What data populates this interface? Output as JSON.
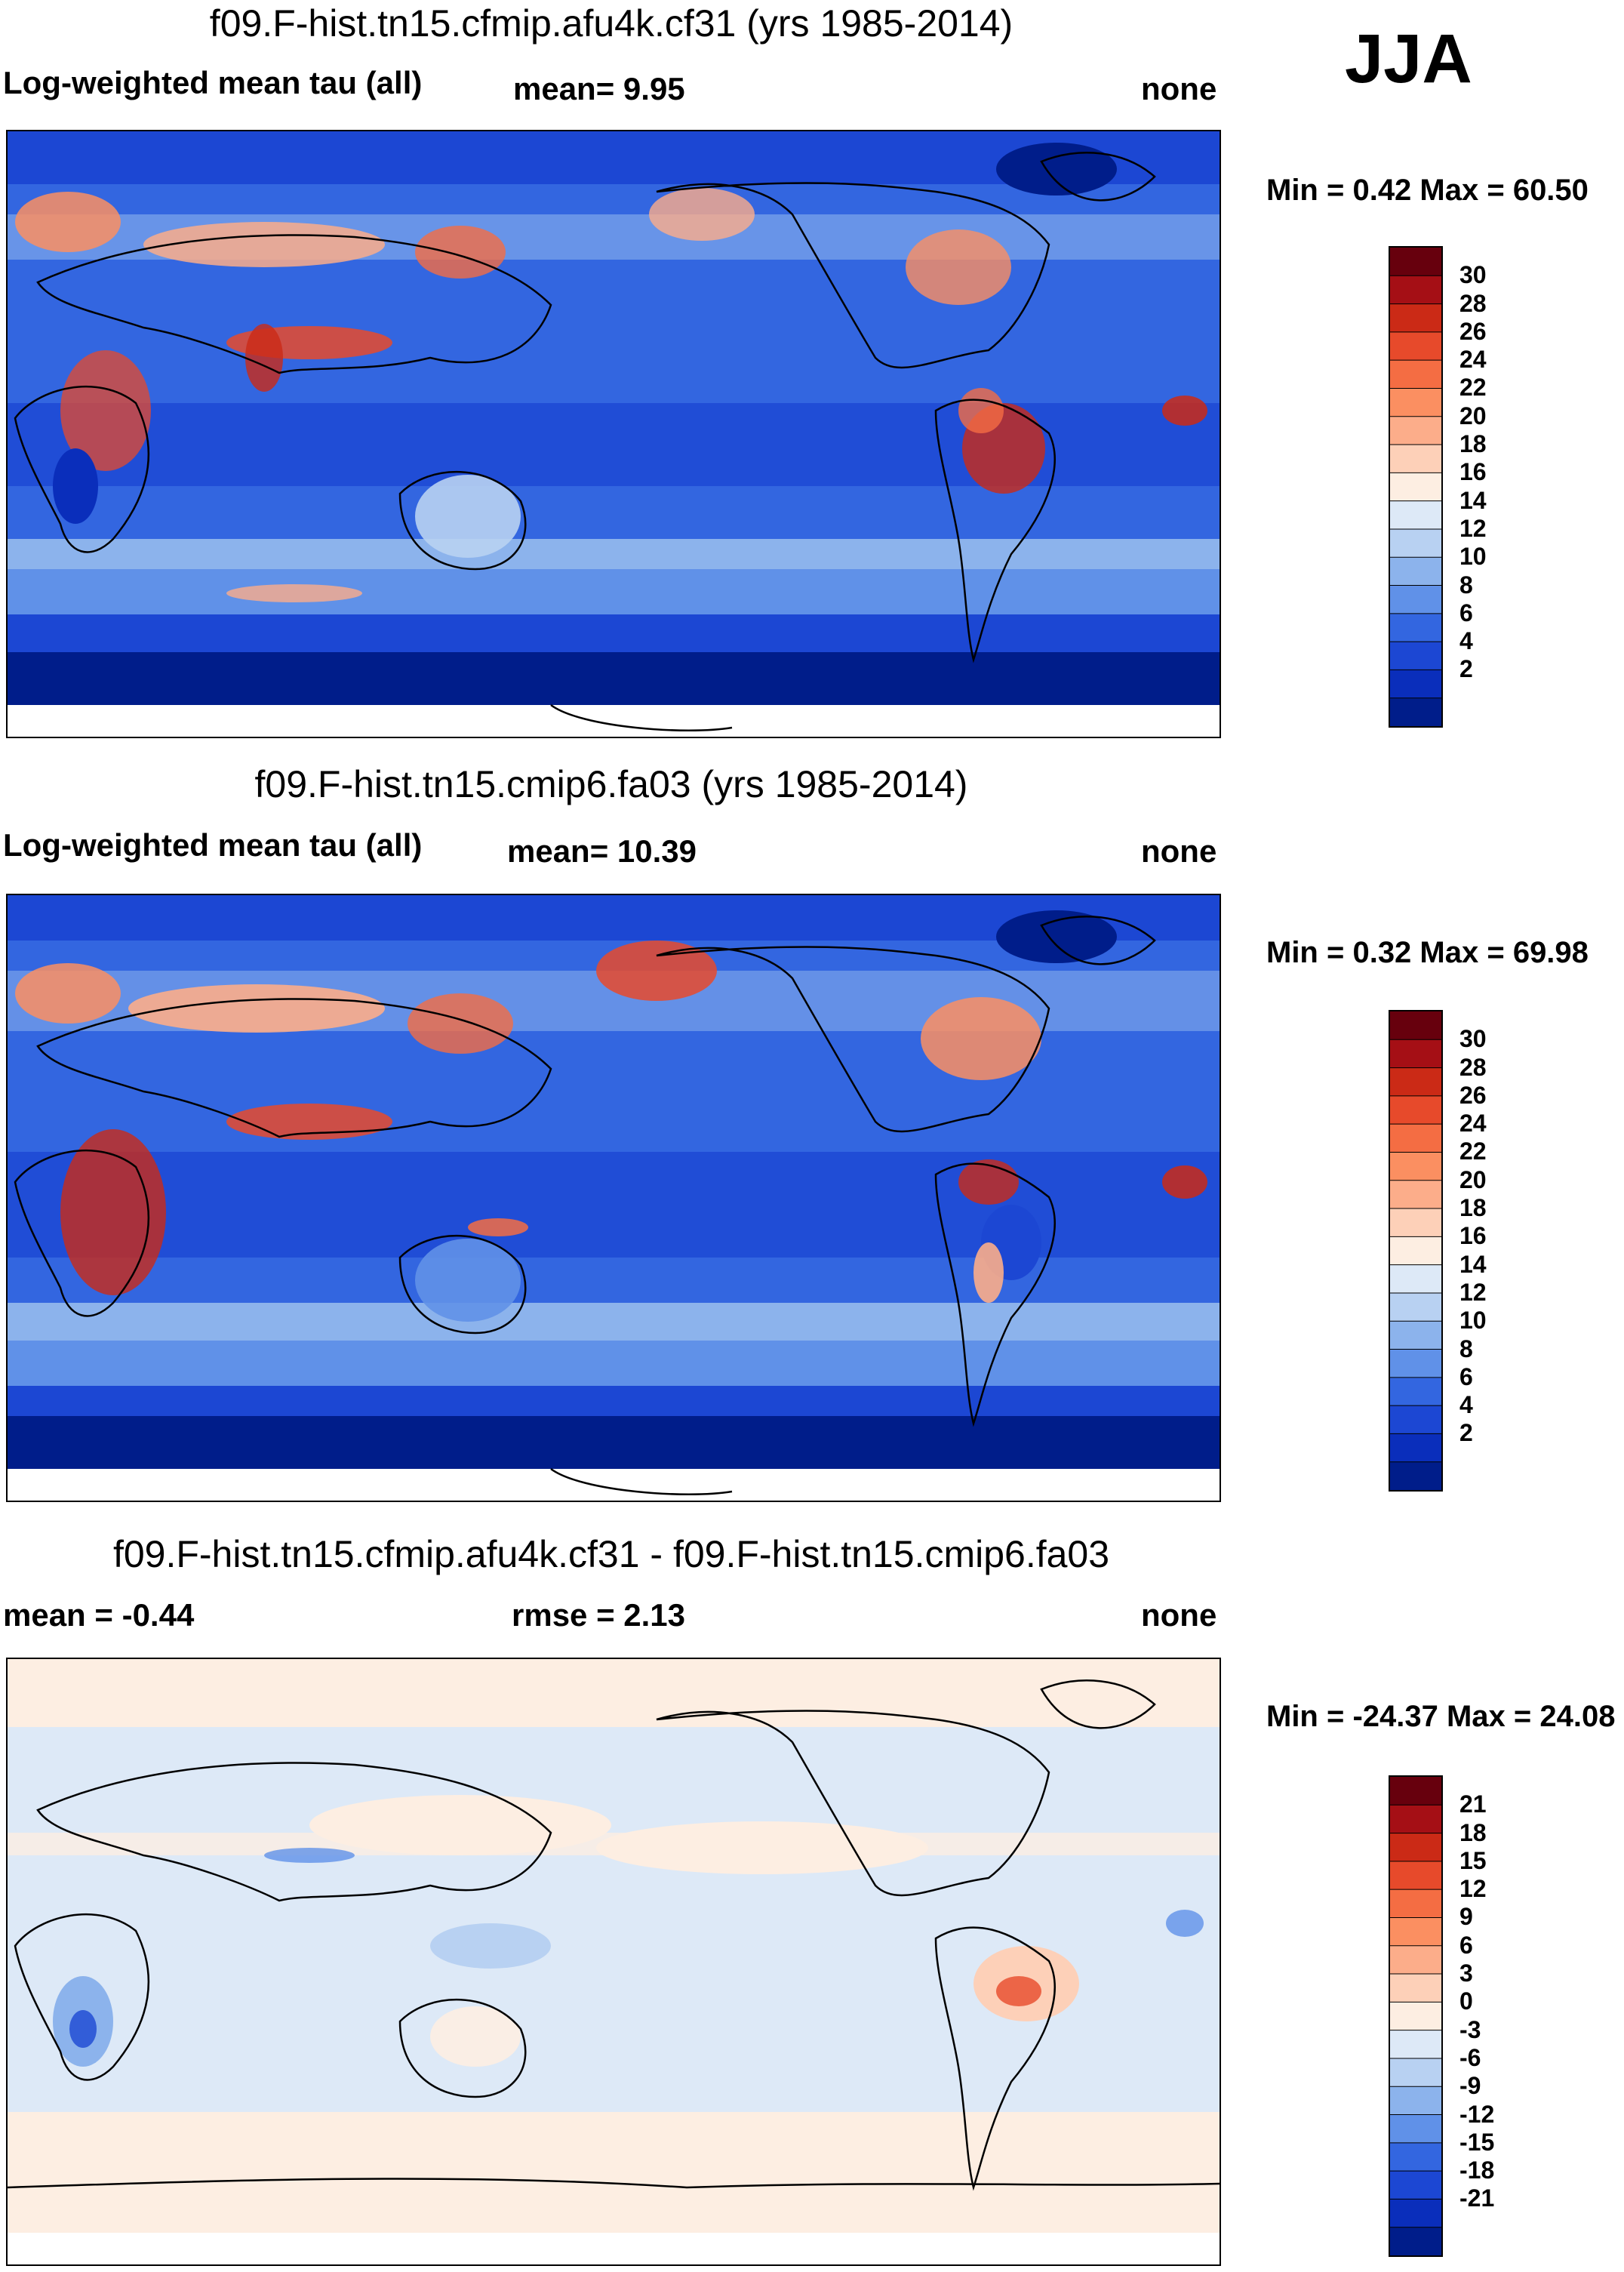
{
  "season": "JJA",
  "panels": [
    {
      "id": "model1",
      "title": "f09.F-hist.tn15.cfmip.afu4k.cf31 (yrs 1985-2014)",
      "left_label": "Log-weighted mean tau (all)",
      "center_label": "mean=   9.95",
      "right_label": "none",
      "minmax": "Min =   0.42 Max =  60.50",
      "colorbar_labels": [
        "30",
        "28",
        "26",
        "24",
        "22",
        "20",
        "18",
        "16",
        "14",
        "12",
        "10",
        "8",
        "6",
        "4",
        "2"
      ],
      "colorbar_colors": [
        "#67000d",
        "#a50f15",
        "#cb2a16",
        "#e74a2b",
        "#f46d43",
        "#fb8f61",
        "#fcad8a",
        "#fdd0b8",
        "#fdeee2",
        "#dde9f7",
        "#b8d1f2",
        "#8cb3ec",
        "#6091e8",
        "#3366e0",
        "#1c47d3",
        "#0a2ebb",
        "#001d8a"
      ]
    },
    {
      "id": "model2",
      "title": "f09.F-hist.tn15.cmip6.fa03 (yrs 1985-2014)",
      "left_label": "Log-weighted mean tau (all)",
      "center_label": "mean=  10.39",
      "right_label": "none",
      "minmax": "Min =   0.32 Max =  69.98",
      "colorbar_labels": [
        "30",
        "28",
        "26",
        "24",
        "22",
        "20",
        "18",
        "16",
        "14",
        "12",
        "10",
        "8",
        "6",
        "4",
        "2"
      ],
      "colorbar_colors": [
        "#67000d",
        "#a50f15",
        "#cb2a16",
        "#e74a2b",
        "#f46d43",
        "#fb8f61",
        "#fcad8a",
        "#fdd0b8",
        "#fdeee2",
        "#dde9f7",
        "#b8d1f2",
        "#8cb3ec",
        "#6091e8",
        "#3366e0",
        "#1c47d3",
        "#0a2ebb",
        "#001d8a"
      ]
    },
    {
      "id": "diff",
      "title": "f09.F-hist.tn15.cfmip.afu4k.cf31 - f09.F-hist.tn15.cmip6.fa03",
      "left_label": "mean =   -0.44",
      "center_label": "rmse =    2.13",
      "right_label": "none",
      "minmax": "Min = -24.37 Max =  24.08",
      "colorbar_labels": [
        "21",
        "18",
        "15",
        "12",
        "9",
        "6",
        "3",
        "0",
        "-3",
        "-6",
        "-9",
        "-12",
        "-15",
        "-18",
        "-21"
      ],
      "colorbar_colors": [
        "#67000d",
        "#a50f15",
        "#cb2a16",
        "#e74a2b",
        "#f46d43",
        "#fb8f61",
        "#fcad8a",
        "#fdd0b8",
        "#fdeee2",
        "#dde9f7",
        "#b8d1f2",
        "#8cb3ec",
        "#6091e8",
        "#3366e0",
        "#1c47d3",
        "#0a2ebb",
        "#001d8a"
      ]
    }
  ]
}
